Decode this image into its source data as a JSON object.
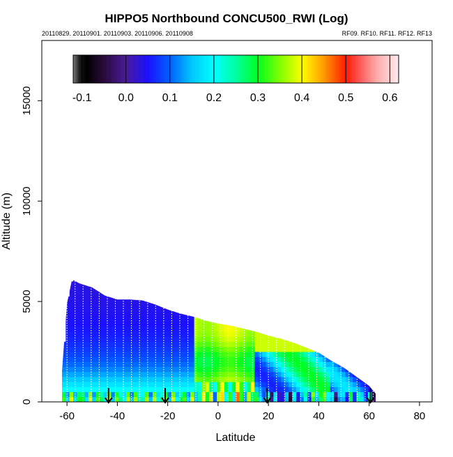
{
  "chart_data": {
    "type": "heatmap",
    "title": "HIPPO5 Northbound CONCU500_RWI (Log)",
    "subtitle_left": "20110829. 20110901. 20110903. 20110906. 20110908",
    "subtitle_right": "RF09. RF10. RF11. RF12. RF13",
    "xlabel": "Latitude",
    "ylabel": "Altitude (m)",
    "xlim": [
      -70,
      85
    ],
    "ylim": [
      0,
      18000
    ],
    "x_ticks": [
      -60,
      -40,
      -20,
      0,
      20,
      40,
      60,
      80
    ],
    "x_tick_labels": [
      "-60",
      "-40",
      "-20",
      "0",
      "20",
      "40",
      "60",
      "80"
    ],
    "y_ticks": [
      0,
      5000,
      10000,
      15000
    ],
    "y_tick_labels": [
      "0",
      "5000",
      "10000",
      "15000"
    ],
    "colorbar": {
      "min": -0.12,
      "max": 0.62,
      "ticks": [
        -0.1,
        0.0,
        0.1,
        0.2,
        0.3,
        0.4,
        0.5,
        0.6
      ],
      "tick_labels": [
        "-0.1",
        "0.0",
        "0.1",
        "0.2",
        "0.3",
        "0.4",
        "0.5",
        "0.6"
      ],
      "stops": [
        {
          "v": -0.12,
          "c": "#7a7a7a"
        },
        {
          "v": -0.105,
          "c": "#1a1a1a"
        },
        {
          "v": -0.09,
          "c": "#000000"
        },
        {
          "v": -0.05,
          "c": "#2a0a3a"
        },
        {
          "v": 0.0,
          "c": "#4a1a9a"
        },
        {
          "v": 0.05,
          "c": "#1a10ff"
        },
        {
          "v": 0.1,
          "c": "#0060ff"
        },
        {
          "v": 0.15,
          "c": "#00c8ff"
        },
        {
          "v": 0.2,
          "c": "#00ffff"
        },
        {
          "v": 0.25,
          "c": "#00ffa0"
        },
        {
          "v": 0.3,
          "c": "#00ff20"
        },
        {
          "v": 0.35,
          "c": "#80ff00"
        },
        {
          "v": 0.4,
          "c": "#ffff00"
        },
        {
          "v": 0.45,
          "c": "#ff9a00"
        },
        {
          "v": 0.5,
          "c": "#ff1a00"
        },
        {
          "v": 0.53,
          "c": "#ff5555"
        },
        {
          "v": 0.57,
          "c": "#ffaaaa"
        },
        {
          "v": 0.62,
          "c": "#ffeeee"
        }
      ]
    },
    "flight_profile": [
      {
        "lat": -62,
        "top": 1500
      },
      {
        "lat": -60,
        "top": 4900
      },
      {
        "lat": -58,
        "top": 6100
      },
      {
        "lat": -55,
        "top": 5900
      },
      {
        "lat": -50,
        "top": 5700
      },
      {
        "lat": -45,
        "top": 5300
      },
      {
        "lat": -40,
        "top": 5100
      },
      {
        "lat": -35,
        "top": 5100
      },
      {
        "lat": -30,
        "top": 5050
      },
      {
        "lat": -25,
        "top": 4850
      },
      {
        "lat": -20,
        "top": 4600
      },
      {
        "lat": -15,
        "top": 4400
      },
      {
        "lat": -10,
        "top": 4250
      },
      {
        "lat": -5,
        "top": 4050
      },
      {
        "lat": 0,
        "top": 3900
      },
      {
        "lat": 5,
        "top": 3800
      },
      {
        "lat": 10,
        "top": 3650
      },
      {
        "lat": 15,
        "top": 3500
      },
      {
        "lat": 20,
        "top": 3300
      },
      {
        "lat": 25,
        "top": 3150
      },
      {
        "lat": 30,
        "top": 2950
      },
      {
        "lat": 35,
        "top": 2700
      },
      {
        "lat": 40,
        "top": 2450
      },
      {
        "lat": 45,
        "top": 2050
      },
      {
        "lat": 50,
        "top": 1700
      },
      {
        "lat": 55,
        "top": 1250
      },
      {
        "lat": 60,
        "top": 800
      },
      {
        "lat": 63,
        "top": 350
      }
    ],
    "flight_boundaries_lat": [
      -43.5,
      -21,
      19.5,
      60.5
    ],
    "annotations": "Curtain plot of CONCU500_RWI (log scale) versus latitude and altitude; downward arrows mark flight boundaries near the surface; white dotted lines are vertical aircraft profiles."
  }
}
